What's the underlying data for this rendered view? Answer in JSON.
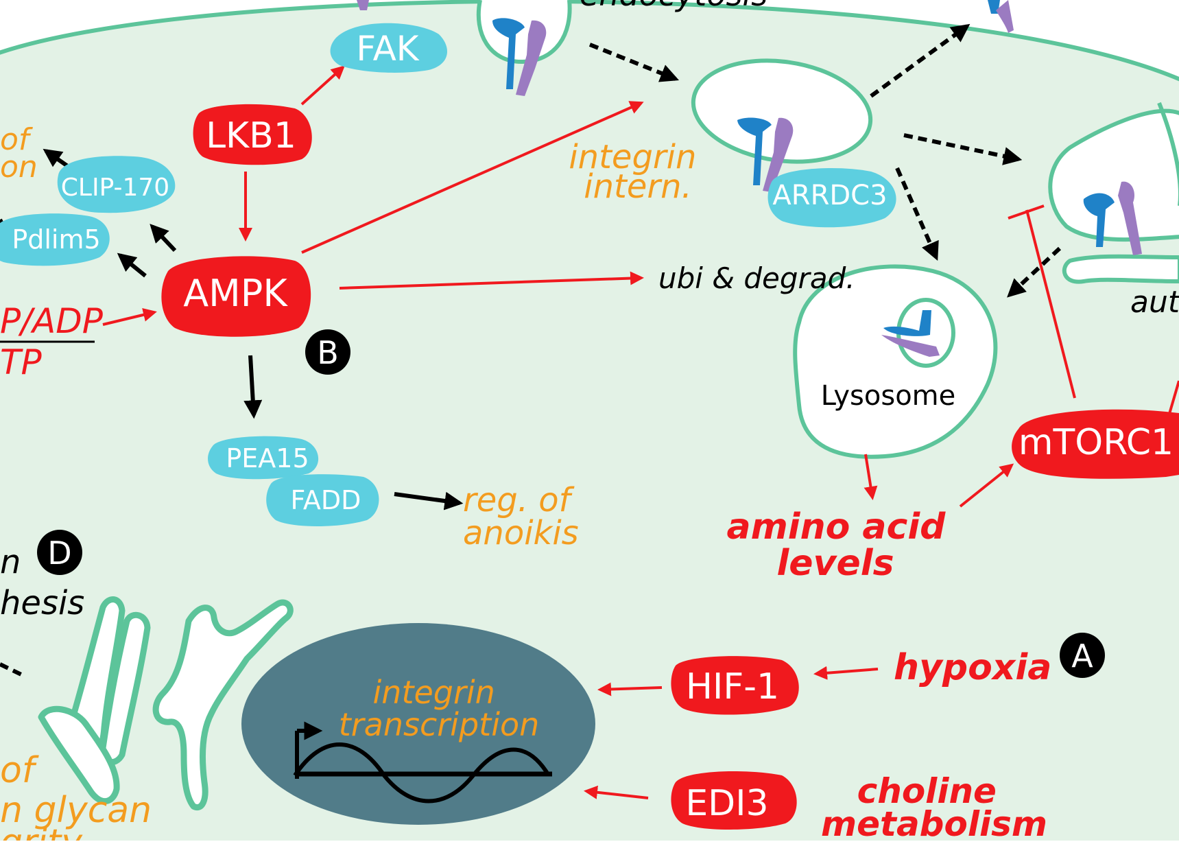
{
  "nodes": {
    "fak": "FAK",
    "lkb1": "LKB1",
    "clip170": "CLIP-170",
    "pdlim5": "Pdlim5",
    "ampk": "AMPK",
    "pea15": "PEA15",
    "fadd": "FADD",
    "arrdc3": "ARRDC3",
    "mtorc1": "mTORC1",
    "hif1": "HIF-1",
    "edi3": "EDI3"
  },
  "labels": {
    "endocytosis": "endocytosis",
    "integrin_intern_1": "integrin",
    "integrin_intern_2": "intern.",
    "ubi_degrad": "ubi & degrad.",
    "lysosome": "Lysosome",
    "amino_acid_1": "amino acid",
    "amino_acid_2": "levels",
    "reg_anoikis_1": "reg. of",
    "reg_anoikis_2": "anoikis",
    "integrin_transcription_1": "integrin",
    "integrin_transcription_2": "transcription",
    "hypoxia": "hypoxia",
    "choline_1": "choline",
    "choline_2": "metabolism",
    "left_of_1": "of",
    "left_of_2": "on",
    "amp_adp": "P/ADP",
    "atp": "TP",
    "synthesis_1": "n",
    "synthesis_2": "hesis",
    "glycan_1": "of",
    "glycan_2": "n glycan",
    "glycan_3": "grity",
    "autophagy": "aut"
  },
  "badges": {
    "a": "A",
    "b": "B",
    "d": "D"
  },
  "colors": {
    "cell_fill": "#e3f2e6",
    "membrane": "#5cc49a",
    "red": "#f0191e",
    "cyan": "#5dcfe0",
    "orange": "#f39c1f",
    "nucleus": "#517c89",
    "integrin_blue": "#1f82c8",
    "integrin_purple": "#9b7bc1",
    "black": "#000000"
  }
}
